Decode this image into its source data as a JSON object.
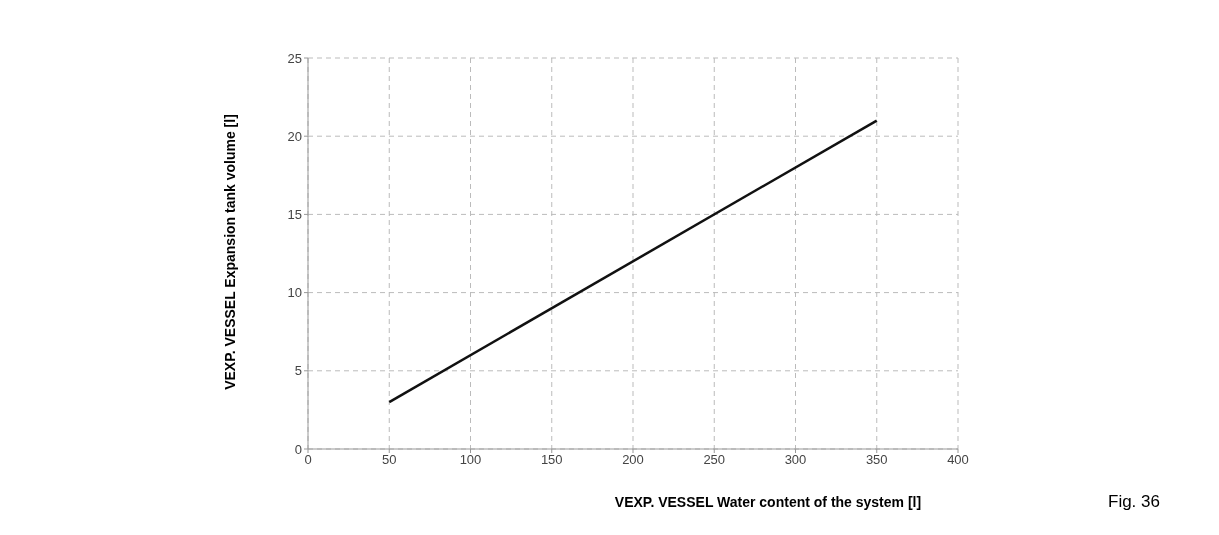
{
  "chart_data": {
    "type": "line",
    "xlabel": "VEXP. VESSEL Water content of the system [l]",
    "ylabel": "VEXP. VESSEL Expansion tank volume [l]",
    "annotations": [
      "Fig. 36"
    ],
    "x": [
      50,
      350
    ],
    "series": [
      {
        "color": "#111111",
        "values": [
          3,
          21
        ]
      }
    ],
    "xlim": [
      0,
      400
    ],
    "xticks": [
      0,
      50,
      100,
      150,
      200,
      250,
      300,
      350,
      400
    ],
    "ylim": [
      0,
      25
    ],
    "yticks": [
      0,
      5,
      10,
      15,
      20,
      25
    ],
    "grid": true,
    "marker": "none",
    "line_style": "solid"
  }
}
